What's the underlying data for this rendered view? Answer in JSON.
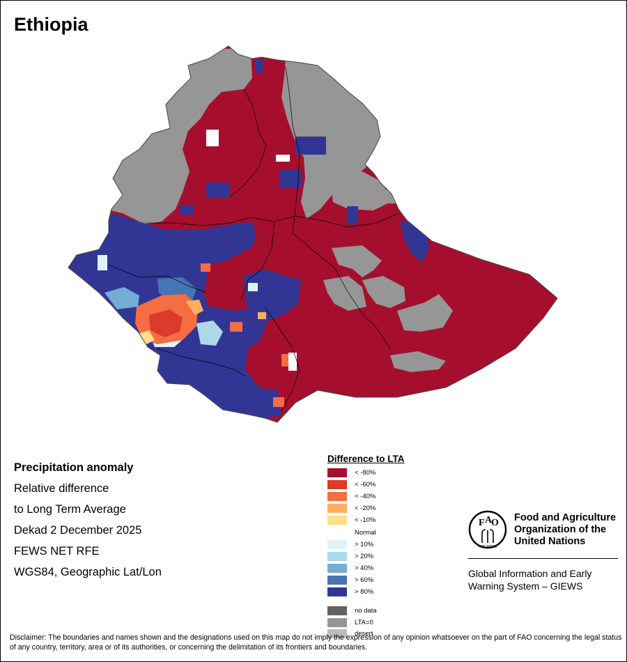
{
  "map_title": "Ethiopia",
  "info": {
    "heading": "Precipitation anomaly",
    "lines": [
      "Relative difference",
      "to Long Term Average",
      "Dekad 2 December 2025",
      "FEWS NET RFE",
      "WGS84, Geographic Lat/Lon"
    ]
  },
  "legend": {
    "title": "Difference to LTA",
    "items": [
      {
        "label": "< -80%",
        "color": "#a50f2d"
      },
      {
        "label": "< -60%",
        "color": "#dc3a2a"
      },
      {
        "label": "< -40%",
        "color": "#f46d43"
      },
      {
        "label": "< -20%",
        "color": "#fdae61"
      },
      {
        "label": "< -10%",
        "color": "#fee08b"
      },
      {
        "label": "Normal",
        "color": "#ffffff"
      },
      {
        "label": "> 10%",
        "color": "#e0f3f8"
      },
      {
        "label": "> 20%",
        "color": "#abd9e9"
      },
      {
        "label": "> 40%",
        "color": "#74add1"
      },
      {
        "label": "> 60%",
        "color": "#4575b4"
      },
      {
        "label": "> 80%",
        "color": "#313695"
      },
      {
        "label": "no data",
        "color": "#636363"
      },
      {
        "label": "LTA=0",
        "color": "#969696"
      },
      {
        "label": "desert",
        "color": "#bdbdbd"
      }
    ]
  },
  "fao": {
    "logo_letters": [
      "F",
      "A",
      "O"
    ],
    "logo_motto": "FIAT PANIS",
    "name_lines": [
      "Food and Agriculture",
      "Organization of the",
      "United Nations"
    ],
    "system_lines": [
      "Global Information and Early",
      "Warning System – GIEWS"
    ]
  },
  "disclaimer": "Disclaimer: The boundaries and names shown and the designations used on this map do not imply the expression of any opinion whatsoever on the part of FAO concerning the legal status of any country, territory, area or of its authorities, or concerning the delimitation of its frontiers and boundaries.",
  "colors": {
    "dry_extreme": "#a50f2d",
    "wet_extreme": "#313695",
    "lta_zero": "#969696",
    "boundary": "#000000"
  }
}
